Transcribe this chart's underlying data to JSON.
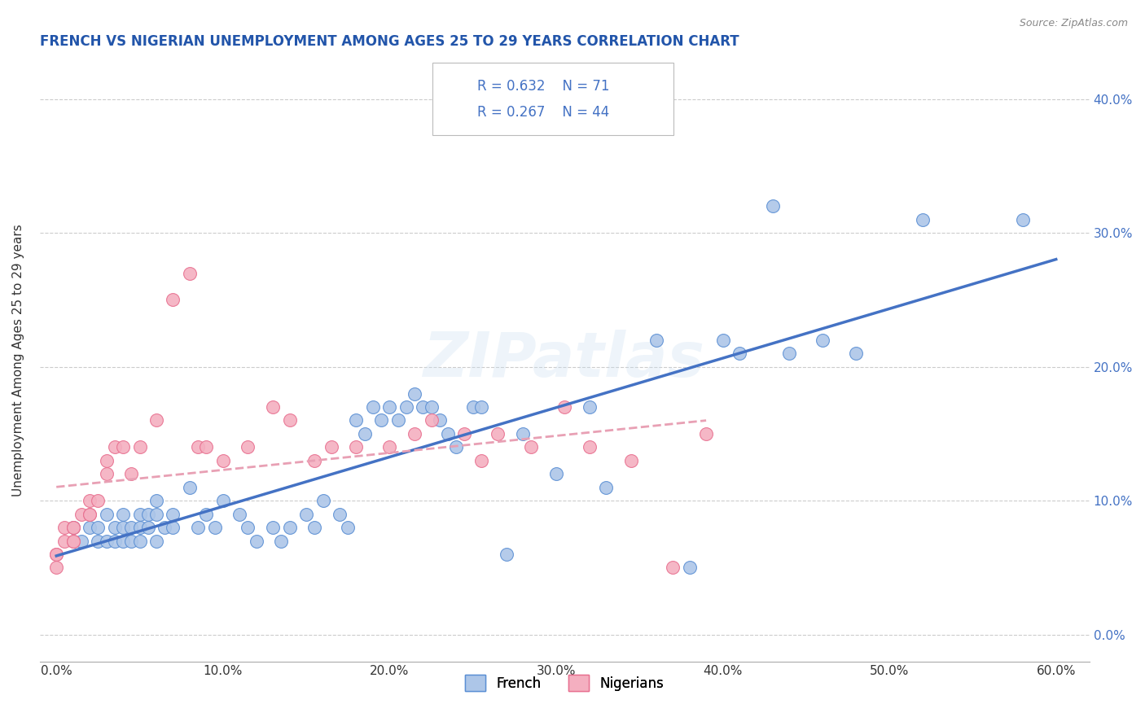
{
  "title": "FRENCH VS NIGERIAN UNEMPLOYMENT AMONG AGES 25 TO 29 YEARS CORRELATION CHART",
  "source": "Source: ZipAtlas.com",
  "ylabel": "Unemployment Among Ages 25 to 29 years",
  "xlabel_ticks": [
    "0.0%",
    "10.0%",
    "20.0%",
    "30.0%",
    "40.0%",
    "50.0%",
    "60.0%"
  ],
  "xlabel_vals": [
    0.0,
    0.1,
    0.2,
    0.3,
    0.4,
    0.5,
    0.6
  ],
  "ylabel_ticks": [
    "0.0%",
    "10.0%",
    "20.0%",
    "30.0%",
    "40.0%"
  ],
  "ylabel_vals": [
    0.0,
    0.1,
    0.2,
    0.3,
    0.4
  ],
  "xlim": [
    -0.01,
    0.62
  ],
  "ylim": [
    -0.02,
    0.43
  ],
  "french_R": 0.632,
  "french_N": 71,
  "nigerian_R": 0.267,
  "nigerian_N": 44,
  "french_color": "#adc6e8",
  "nigerian_color": "#f4afc0",
  "french_edge_color": "#5b8fd4",
  "nigerian_edge_color": "#e87090",
  "trendline_french_color": "#4472c4",
  "trendline_nigerian_color": "#e8a0b4",
  "legend_text_color": "#4472c4",
  "watermark": "ZIPatlas",
  "background_color": "#ffffff",
  "grid_color": "#cccccc",
  "french_x": [
    0.01,
    0.015,
    0.02,
    0.025,
    0.025,
    0.03,
    0.03,
    0.035,
    0.035,
    0.04,
    0.04,
    0.04,
    0.045,
    0.045,
    0.05,
    0.05,
    0.05,
    0.055,
    0.055,
    0.06,
    0.06,
    0.06,
    0.065,
    0.07,
    0.07,
    0.08,
    0.085,
    0.09,
    0.095,
    0.1,
    0.11,
    0.115,
    0.12,
    0.13,
    0.135,
    0.14,
    0.15,
    0.155,
    0.16,
    0.17,
    0.175,
    0.18,
    0.185,
    0.19,
    0.195,
    0.2,
    0.205,
    0.21,
    0.215,
    0.22,
    0.225,
    0.23,
    0.235,
    0.24,
    0.25,
    0.255,
    0.27,
    0.28,
    0.3,
    0.32,
    0.33,
    0.36,
    0.38,
    0.4,
    0.41,
    0.43,
    0.44,
    0.46,
    0.48,
    0.52,
    0.58
  ],
  "french_y": [
    0.08,
    0.07,
    0.08,
    0.08,
    0.07,
    0.09,
    0.07,
    0.08,
    0.07,
    0.08,
    0.09,
    0.07,
    0.08,
    0.07,
    0.09,
    0.08,
    0.07,
    0.09,
    0.08,
    0.1,
    0.09,
    0.07,
    0.08,
    0.09,
    0.08,
    0.11,
    0.08,
    0.09,
    0.08,
    0.1,
    0.09,
    0.08,
    0.07,
    0.08,
    0.07,
    0.08,
    0.09,
    0.08,
    0.1,
    0.09,
    0.08,
    0.16,
    0.15,
    0.17,
    0.16,
    0.17,
    0.16,
    0.17,
    0.18,
    0.17,
    0.17,
    0.16,
    0.15,
    0.14,
    0.17,
    0.17,
    0.06,
    0.15,
    0.12,
    0.17,
    0.11,
    0.22,
    0.05,
    0.22,
    0.21,
    0.32,
    0.21,
    0.22,
    0.21,
    0.31,
    0.31
  ],
  "nigerian_x": [
    0.0,
    0.0,
    0.0,
    0.005,
    0.005,
    0.01,
    0.01,
    0.01,
    0.01,
    0.015,
    0.02,
    0.02,
    0.02,
    0.025,
    0.03,
    0.03,
    0.035,
    0.04,
    0.045,
    0.05,
    0.06,
    0.07,
    0.08,
    0.085,
    0.09,
    0.1,
    0.115,
    0.13,
    0.14,
    0.155,
    0.165,
    0.18,
    0.2,
    0.215,
    0.225,
    0.245,
    0.255,
    0.265,
    0.285,
    0.305,
    0.32,
    0.345,
    0.37,
    0.39
  ],
  "nigerian_y": [
    0.06,
    0.06,
    0.05,
    0.08,
    0.07,
    0.08,
    0.07,
    0.08,
    0.07,
    0.09,
    0.09,
    0.1,
    0.09,
    0.1,
    0.13,
    0.12,
    0.14,
    0.14,
    0.12,
    0.14,
    0.16,
    0.25,
    0.27,
    0.14,
    0.14,
    0.13,
    0.14,
    0.17,
    0.16,
    0.13,
    0.14,
    0.14,
    0.14,
    0.15,
    0.16,
    0.15,
    0.13,
    0.15,
    0.14,
    0.17,
    0.14,
    0.13,
    0.05,
    0.15
  ]
}
